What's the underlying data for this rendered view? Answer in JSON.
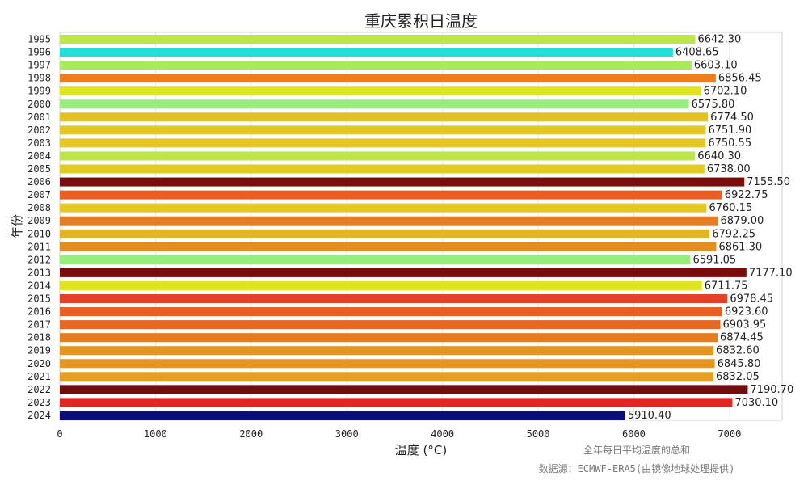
{
  "chart_data": {
    "type": "bar",
    "orientation": "horizontal",
    "title": "重庆累积日温度",
    "xlabel": "温度 (°C)",
    "ylabel": "年份",
    "xlim": [
      0,
      7550
    ],
    "xticks": [
      0,
      1000,
      2000,
      3000,
      4000,
      5000,
      6000,
      7000
    ],
    "grid": true,
    "categories": [
      "1995",
      "1996",
      "1997",
      "1998",
      "1999",
      "2000",
      "2001",
      "2002",
      "2003",
      "2004",
      "2005",
      "2006",
      "2007",
      "2008",
      "2009",
      "2010",
      "2011",
      "2012",
      "2013",
      "2014",
      "2015",
      "2016",
      "2017",
      "2018",
      "2019",
      "2020",
      "2021",
      "2022",
      "2023",
      "2024"
    ],
    "values": [
      6642.3,
      6408.65,
      6603.1,
      6856.45,
      6702.1,
      6575.8,
      6774.5,
      6751.9,
      6750.55,
      6640.3,
      6738.0,
      7155.5,
      6922.75,
      6760.15,
      6879.0,
      6792.25,
      6861.3,
      6591.05,
      7177.1,
      6711.75,
      6978.45,
      6923.6,
      6903.95,
      6874.45,
      6832.6,
      6845.8,
      6832.05,
      7190.7,
      7030.1,
      5910.4
    ],
    "value_labels": [
      "6642.30",
      "6408.65",
      "6603.10",
      "6856.45",
      "6702.10",
      "6575.80",
      "6774.50",
      "6751.90",
      "6750.55",
      "6640.30",
      "6738.00",
      "7155.50",
      "6922.75",
      "6760.15",
      "6879.00",
      "6792.25",
      "6861.30",
      "6591.05",
      "7177.10",
      "6711.75",
      "6978.45",
      "6923.60",
      "6903.95",
      "6874.45",
      "6832.60",
      "6845.80",
      "6832.05",
      "7190.70",
      "7030.10",
      "5910.40"
    ],
    "colors": [
      "#bde64a",
      "#22e0d8",
      "#a8ea5a",
      "#ef7d1a",
      "#dfe41f",
      "#98ee7c",
      "#e4c122",
      "#e4c722",
      "#e4c722",
      "#bde64a",
      "#e4cb22",
      "#7a0c0c",
      "#e95e22",
      "#e4c722",
      "#e57d22",
      "#e4b522",
      "#e68d22",
      "#98ee7c",
      "#7a0c0c",
      "#dfe41f",
      "#e4402a",
      "#e95e22",
      "#e66822",
      "#e67c22",
      "#e59522",
      "#e59522",
      "#e59f22",
      "#6e0e0e",
      "#e22624",
      "#0c0e78"
    ],
    "annotations": [
      "全年每日平均温度的总和",
      "数据源：ECMWF-ERA5(由镜像地球处理提供)"
    ]
  }
}
